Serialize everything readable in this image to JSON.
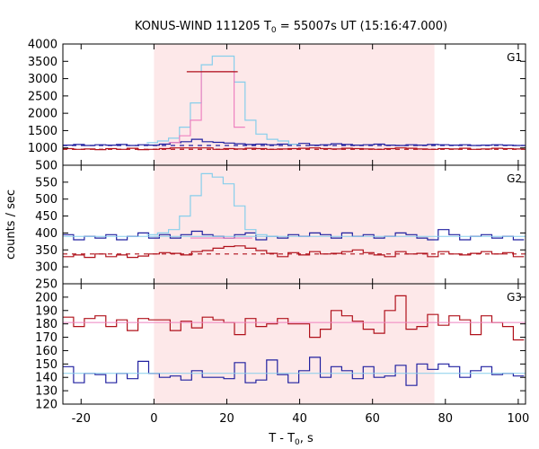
{
  "chart_data": {
    "type": "line",
    "title": "KONUS-WIND 111205 T",
    "title_sub": "0",
    "title_tail": " = 55007s UT (15:16:47.000)",
    "xlabel": "T - T",
    "xlabel_sub": "0",
    "xlabel_tail": ", s",
    "ylabel": "counts / sec",
    "xlim": [
      -25,
      102
    ],
    "x_ticks": [
      -20,
      0,
      20,
      40,
      60,
      80,
      100
    ],
    "highlight_interval": [
      0,
      77
    ],
    "colors": {
      "background_band": "#fde8e9",
      "dark_red": "#b0101a",
      "light_blue": "#87ceeb",
      "pink": "#ee82c0",
      "dark_blue": "#2020a0"
    },
    "panels": [
      {
        "label": "G1",
        "ylim": [
          500,
          4000
        ],
        "yticks": [
          500,
          1000,
          1500,
          2000,
          2500,
          3000,
          3500,
          4000
        ],
        "series": [
          {
            "kind": "step",
            "color_key": "dark_blue",
            "x0": -25,
            "dx": 2.944,
            "values": [
              1080,
              1100,
              1070,
              1090,
              1080,
              1100,
              1070,
              1090,
              1080,
              1110,
              1150,
              1180,
              1250,
              1180,
              1160,
              1140,
              1120,
              1100,
              1110,
              1090,
              1110,
              1100,
              1130,
              1080,
              1090,
              1120,
              1100,
              1080,
              1090,
              1110,
              1080,
              1070,
              1090,
              1080,
              1100,
              1090,
              1080,
              1090,
              1070,
              1080,
              1090,
              1080,
              1070
            ]
          },
          {
            "kind": "step",
            "color_key": "dark_red",
            "x0": -25,
            "dx": 2.944,
            "values": [
              980,
              960,
              970,
              950,
              980,
              960,
              990,
              950,
              960,
              980,
              1000,
              1000,
              1000,
              1000,
              960,
              980,
              970,
              990,
              980,
              960,
              970,
              980,
              990,
              1000,
              980,
              970,
              990,
              980,
              970,
              960,
              980,
              1000,
              990,
              970,
              960,
              980,
              970,
              990,
              960,
              970,
              990,
              980,
              970
            ]
          },
          {
            "kind": "step",
            "color_key": "light_blue",
            "x0": -2,
            "dx": 3,
            "values": [
              1150,
              1200,
              1280,
              1600,
              2300,
              3400,
              3650,
              3650,
              2900,
              1800,
              1400,
              1250,
              1200,
              1100
            ]
          },
          {
            "kind": "step",
            "color_key": "pink",
            "x0": 4,
            "dx": 3,
            "values": [
              1150,
              1350,
              1800,
              3200,
              3200,
              3200,
              1600
            ]
          },
          {
            "kind": "segment",
            "color_key": "dark_red",
            "x": [
              9,
              23
            ],
            "y": 3200
          },
          {
            "kind": "dashed",
            "color_key": "dark_blue",
            "y": 1070
          },
          {
            "kind": "dashed",
            "color_key": "dark_red",
            "y": 960
          }
        ]
      },
      {
        "label": "G2",
        "ylim": [
          250,
          600
        ],
        "yticks": [
          250,
          300,
          350,
          400,
          450,
          500,
          550
        ],
        "series": [
          {
            "kind": "step",
            "color_key": "dark_blue",
            "x0": -25,
            "dx": 2.944,
            "values": [
              395,
              380,
              390,
              385,
              395,
              380,
              390,
              400,
              385,
              395,
              385,
              395,
              405,
              395,
              390,
              385,
              395,
              400,
              380,
              390,
              385,
              395,
              390,
              400,
              395,
              385,
              400,
              390,
              395,
              385,
              390,
              400,
              395,
              385,
              380,
              410,
              395,
              380,
              390,
              395,
              385,
              390,
              380
            ]
          },
          {
            "kind": "step",
            "color_key": "dark_red",
            "x0": -25,
            "dx": 2.944,
            "values": [
              330,
              335,
              328,
              338,
              330,
              335,
              328,
              332,
              338,
              342,
              340,
              335,
              345,
              348,
              355,
              360,
              362,
              355,
              348,
              340,
              330,
              342,
              335,
              345,
              338,
              340,
              345,
              350,
              342,
              335,
              330,
              345,
              338,
              340,
              330,
              345,
              338,
              335,
              340,
              345,
              338,
              342,
              330
            ]
          },
          {
            "kind": "step",
            "color_key": "light_blue",
            "x0": -2,
            "dx": 3,
            "values": [
              395,
              400,
              410,
              450,
              510,
              575,
              565,
              545,
              480,
              410,
              395,
              390
            ]
          },
          {
            "kind": "segment",
            "color_key": "pink",
            "x": [
              10,
              27
            ],
            "y": 385
          },
          {
            "kind": "hline",
            "color_key": "light_blue",
            "y": 390
          },
          {
            "kind": "dashed",
            "color_key": "dark_red",
            "y": 338
          }
        ]
      },
      {
        "label": "G3",
        "ylim": [
          120,
          210
        ],
        "yticks": [
          120,
          130,
          140,
          150,
          160,
          170,
          180,
          190,
          200
        ],
        "series": [
          {
            "kind": "step",
            "color_key": "dark_red",
            "x0": -25,
            "dx": 2.944,
            "values": [
              185,
              178,
              184,
              186,
              178,
              183,
              175,
              184,
              183,
              183,
              175,
              182,
              177,
              185,
              183,
              181,
              172,
              184,
              178,
              180,
              184,
              180,
              180,
              170,
              176,
              190,
              186,
              182,
              176,
              173,
              190,
              201,
              176,
              178,
              187,
              179,
              186,
              183,
              172,
              186,
              181,
              178,
              168
            ]
          },
          {
            "kind": "step",
            "color_key": "dark_blue",
            "x0": -25,
            "dx": 2.944,
            "values": [
              148,
              136,
              143,
              142,
              136,
              143,
              139,
              152,
              143,
              140,
              141,
              138,
              145,
              140,
              140,
              139,
              151,
              136,
              138,
              153,
              142,
              136,
              145,
              155,
              140,
              148,
              145,
              139,
              148,
              140,
              141,
              149,
              134,
              150,
              146,
              150,
              148,
              140,
              145,
              148,
              142,
              143,
              141
            ]
          },
          {
            "kind": "hline",
            "color_key": "pink",
            "y": 181
          },
          {
            "kind": "hline",
            "color_key": "light_blue",
            "y": 143
          }
        ]
      }
    ]
  }
}
